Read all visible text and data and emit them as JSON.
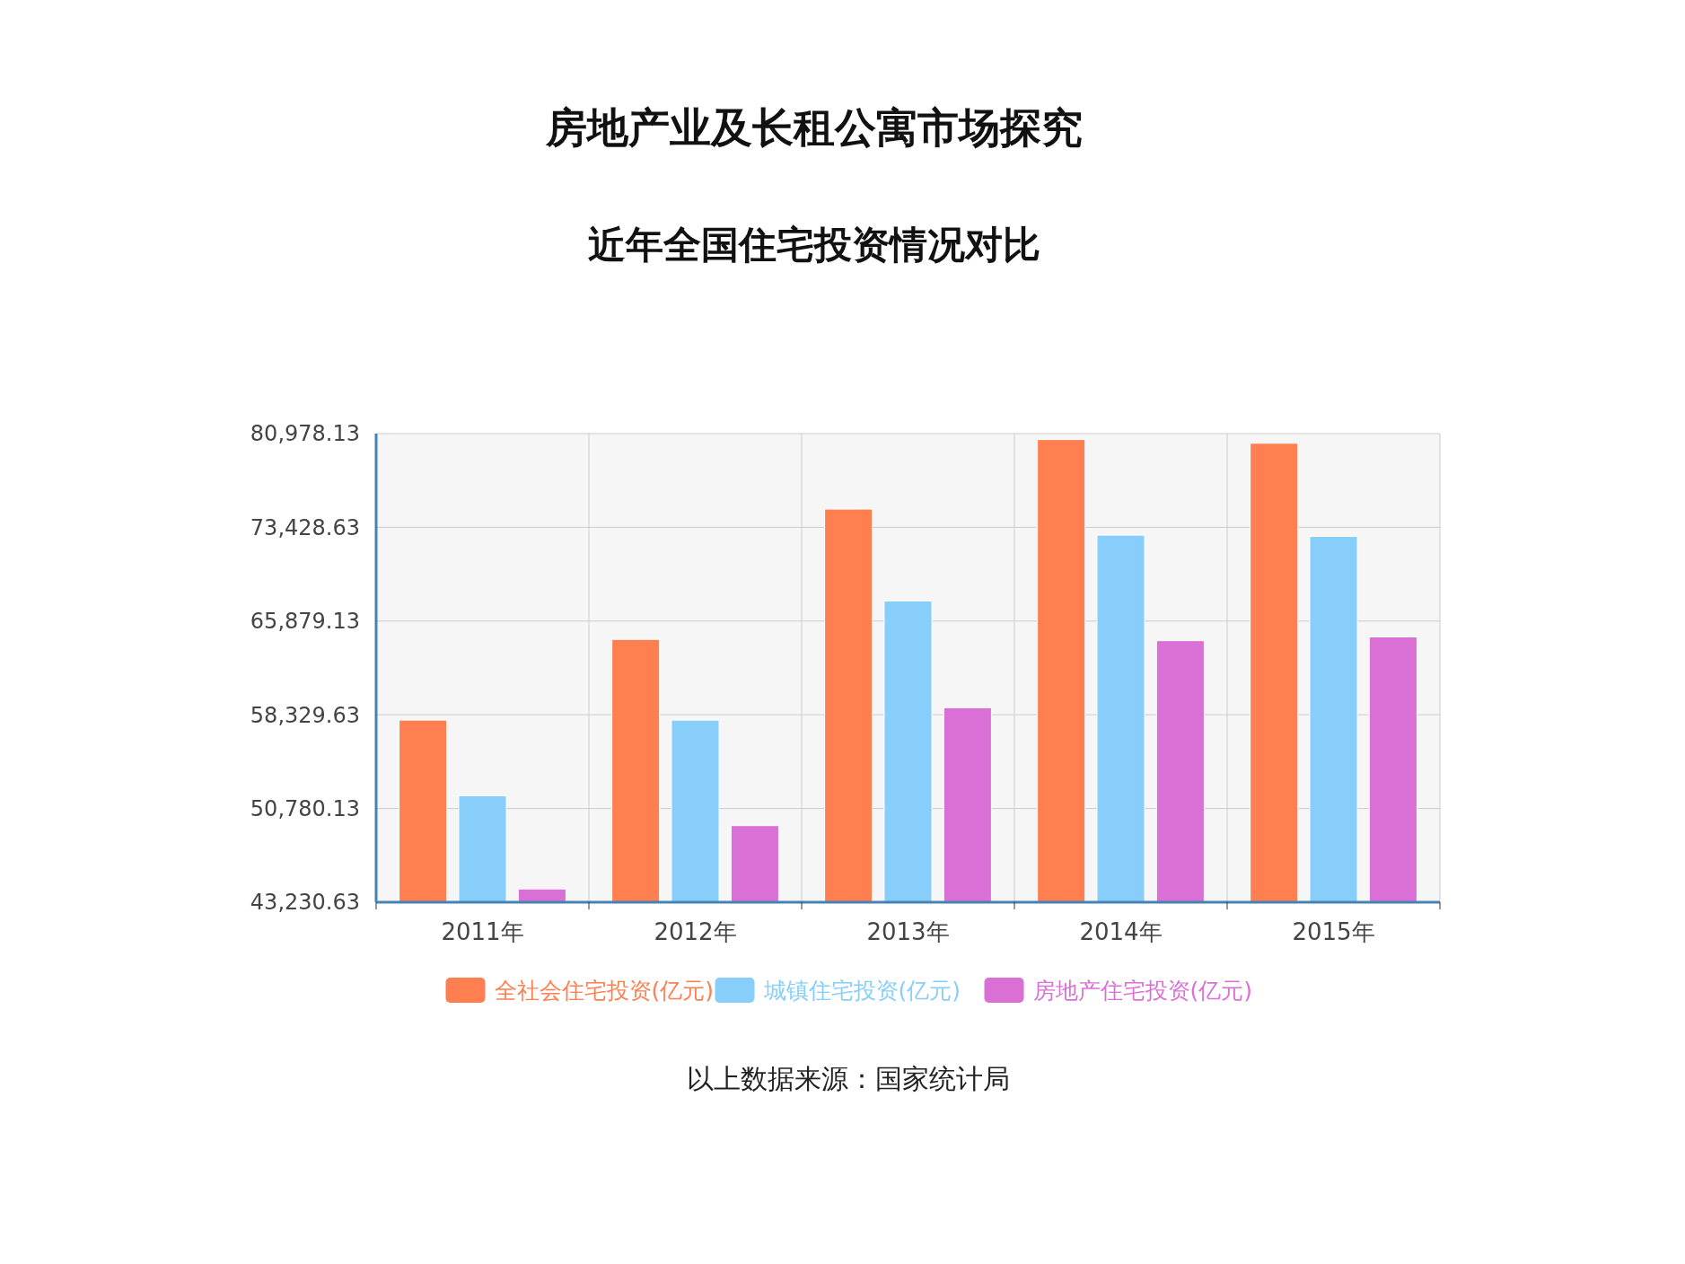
{
  "chart_data": {
    "type": "bar",
    "title": "房地产业及长租公寓市场探究",
    "subtitle": "近年全国住宅投资情况对比",
    "categories": [
      "2011年",
      "2012年",
      "2013年",
      "2014年",
      "2015年"
    ],
    "series": [
      {
        "name": "全社会住宅投资(亿元)",
        "color": "#ff7f50",
        "values": [
          57900,
          64400,
          74900,
          80500,
          80200
        ]
      },
      {
        "name": "城镇住宅投资(亿元)",
        "color": "#87cefa",
        "values": [
          51800,
          57900,
          67500,
          72800,
          72700
        ]
      },
      {
        "name": "房地产住宅投资(亿元)",
        "color": "#da70d6",
        "values": [
          44300,
          49400,
          58900,
          64300,
          64600
        ]
      }
    ],
    "ylim": [
      43230.63,
      80978.13
    ],
    "yticks": [
      {
        "value": 43230.63,
        "label": "43,230.63"
      },
      {
        "value": 50780.13,
        "label": "50,780.13"
      },
      {
        "value": 58329.63,
        "label": "58,329.63"
      },
      {
        "value": 65879.13,
        "label": "65,879.13"
      },
      {
        "value": 73428.63,
        "label": "73,428.63"
      },
      {
        "value": 80978.13,
        "label": "80,978.13"
      }
    ],
    "grid": true,
    "legend": "bottom",
    "annotations": [
      "以上数据来源：国家统计局"
    ]
  }
}
